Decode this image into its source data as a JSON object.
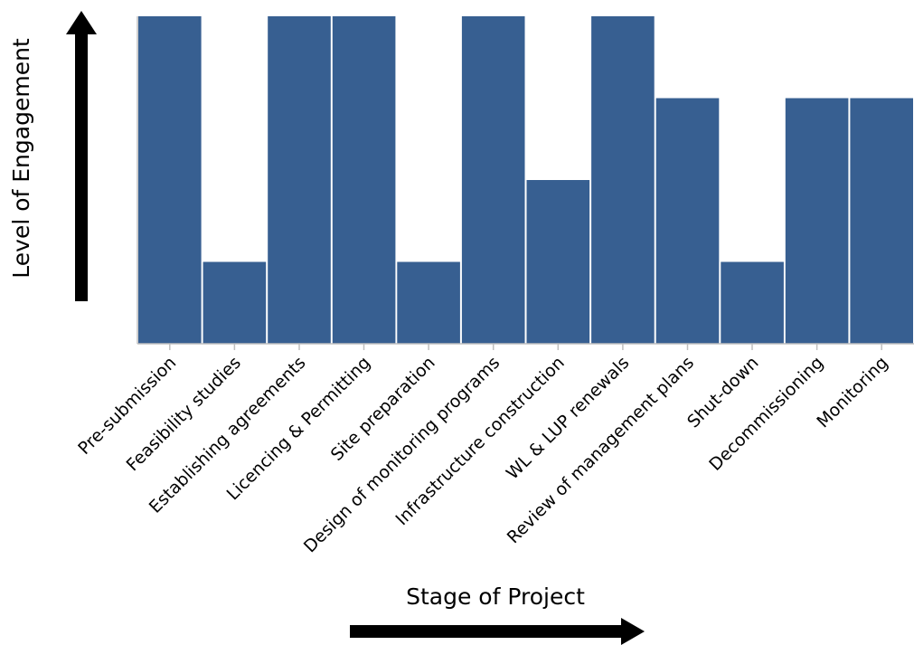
{
  "chart_data": {
    "type": "bar",
    "xlabel": "Stage of Project",
    "ylabel": "Level of Engagement",
    "categories": [
      "Pre-submission",
      "Feasibility studies",
      "Establishing agreements",
      "Licencing & Permitting",
      "Site preparation",
      "Design of monitoring programs",
      "Infrastructure construction",
      "WL & LUP renewals",
      "Review of management plans",
      "Shut-down",
      "Decommissioning",
      "Monitoring"
    ],
    "values": [
      4,
      1,
      4,
      4,
      1,
      4,
      2,
      4,
      3,
      1,
      3,
      3
    ],
    "ylim": [
      0,
      4
    ],
    "bar_color": "#375f91",
    "axis_color": "#bfbfbf",
    "arrow_color": "#000000",
    "grid": false,
    "y_ticks_shown": false
  }
}
